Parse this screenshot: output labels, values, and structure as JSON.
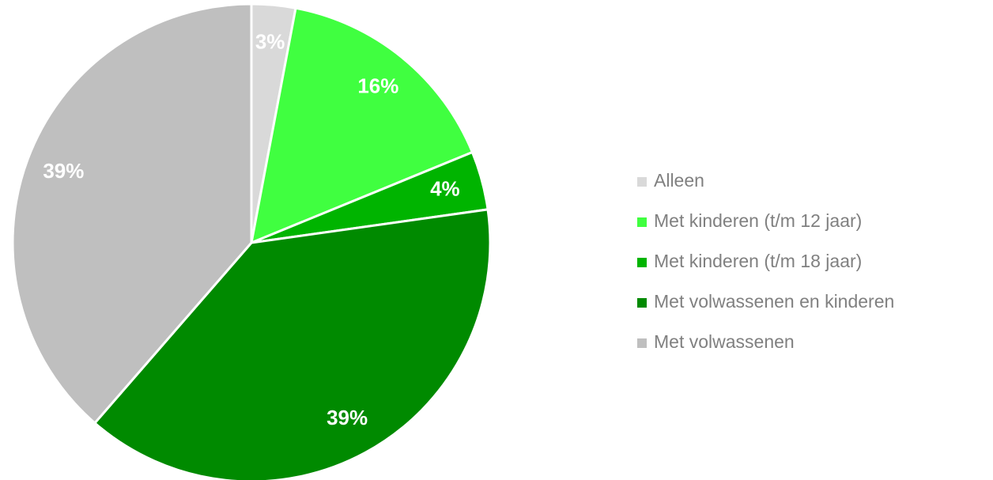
{
  "chart_data": {
    "type": "pie",
    "categories": [
      "Alleen",
      "Met kinderen (t/m 12 jaar)",
      "Met kinderen (t/m 18 jaar)",
      "Met volwassenen en kinderen",
      "Met volwassenen"
    ],
    "values": [
      3,
      16,
      4,
      39,
      39
    ],
    "value_labels": [
      "3%",
      "16%",
      "4%",
      "39%",
      "39%"
    ],
    "colors": [
      "#d9d9d9",
      "#40ff40",
      "#00b400",
      "#008a00",
      "#bfbfbf"
    ],
    "legend": "right"
  }
}
